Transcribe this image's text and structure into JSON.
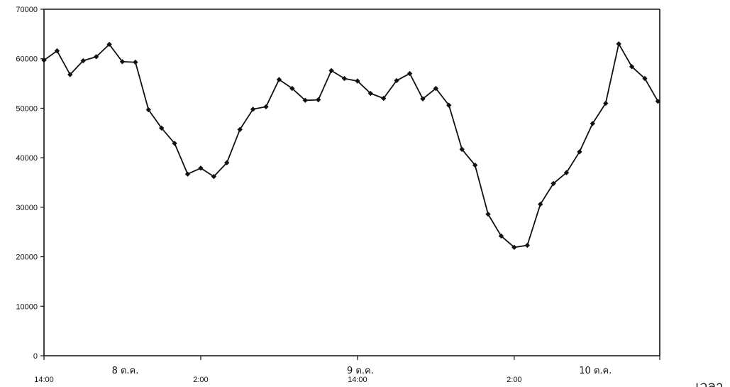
{
  "chart_data": {
    "type": "line",
    "title": "",
    "xlabel": "เวลา",
    "ylabel": "",
    "ylim": [
      0,
      70000
    ],
    "y_ticks": [
      0,
      10000,
      20000,
      30000,
      40000,
      50000,
      60000,
      70000
    ],
    "x_time_labels": [
      {
        "label": "14:00",
        "index": 0
      },
      {
        "label": "2:00",
        "index": 12
      },
      {
        "label": "14:00",
        "index": 24
      },
      {
        "label": "2:00",
        "index": 36
      }
    ],
    "x_date_labels": [
      {
        "label": "8 ต.ค.",
        "index": 6
      },
      {
        "label": "9 ต.ค.",
        "index": 24
      },
      {
        "label": "10 ต.ค.",
        "index": 42
      }
    ],
    "grid": false,
    "legend": "none",
    "series": [
      {
        "color": "#111111",
        "values": [
          59700,
          61600,
          56800,
          59600,
          60400,
          62900,
          59400,
          59300,
          49700,
          46000,
          42900,
          36700,
          37900,
          36200,
          39000,
          45700,
          49800,
          50300,
          55800,
          54000,
          51600,
          51700,
          57600,
          56000,
          55500,
          53000,
          52000,
          55600,
          57000,
          51900,
          54000,
          50600,
          41700,
          38500,
          28600,
          24200,
          21900,
          22300,
          30600,
          34800,
          37000,
          41200,
          46900,
          51000,
          63000,
          58400,
          56000,
          51400
        ]
      }
    ]
  }
}
